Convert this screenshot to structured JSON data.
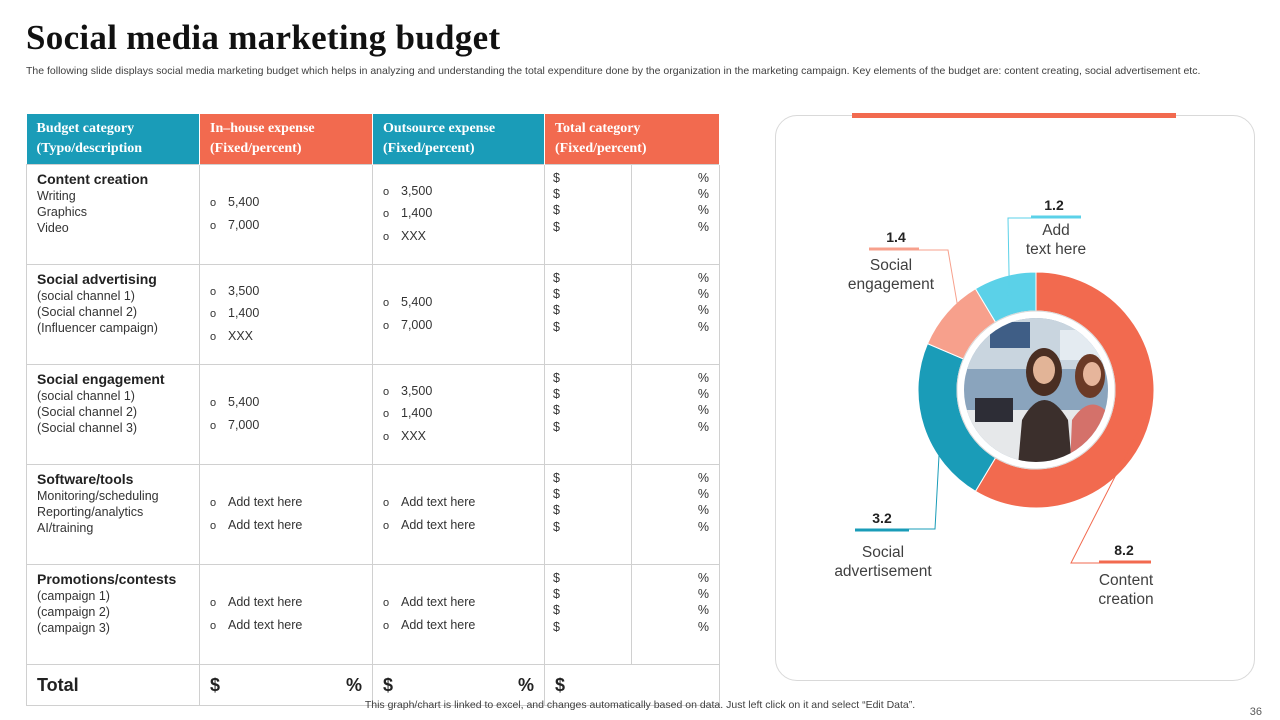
{
  "title": "Social media marketing budget",
  "subtitle": "The following slide displays social media marketing budget which helps in analyzing and understanding the total expenditure done by the organization  in the marketing campaign. Key elements of the budget are: content creating, social advertisement etc.",
  "table": {
    "headers": [
      {
        "line1": "Budget category",
        "line2": "(Typo/description"
      },
      {
        "line1": "In–house expense",
        "line2": "(Fixed/percent)"
      },
      {
        "line1": "Outsource expense",
        "line2": "(Fixed/percent)"
      },
      {
        "line1": "Total category",
        "line2": "(Fixed/percent)"
      }
    ],
    "rows": [
      {
        "name": "Content creation",
        "sub": [
          "Writing",
          "Graphics",
          "Video"
        ],
        "inhouse": [
          "5,400",
          "7,000"
        ],
        "outsource": [
          "3,500",
          "1,400",
          "XXX"
        ]
      },
      {
        "name": "Social advertising",
        "sub": [
          "(social channel 1)",
          "(Social channel 2)",
          "(Influencer  campaign)"
        ],
        "inhouse": [
          "3,500",
          "1,400",
          "XXX"
        ],
        "outsource": [
          "5,400",
          "7,000"
        ]
      },
      {
        "name": "Social engagement",
        "sub": [
          "(social channel 1)",
          "(Social channel 2)",
          "(Social channel 3)"
        ],
        "inhouse": [
          "5,400",
          "7,000"
        ],
        "outsource": [
          "3,500",
          "1,400",
          "XXX"
        ]
      },
      {
        "name": "Software/tools",
        "sub": [
          "Monitoring/scheduling",
          "Reporting/analytics",
          "AI/training"
        ],
        "inhouse": [
          "Add text here",
          "Add text here"
        ],
        "outsource": [
          "Add text here",
          "Add text here"
        ]
      },
      {
        "name": "Promotions/contests",
        "sub": [
          "(campaign  1)",
          "(campaign  2)",
          "(campaign  3)"
        ],
        "inhouse": [
          "Add text here",
          "Add text here"
        ],
        "outsource": [
          "Add text here",
          "Add text here"
        ]
      }
    ],
    "dollar": "$",
    "percent": "%",
    "total_label": "Total"
  },
  "chart_data": {
    "type": "pie",
    "variant": "donut",
    "categories": [
      "Content creation",
      "Social advertisement",
      "Social engagement",
      "Add text here"
    ],
    "values": [
      8.2,
      3.2,
      1.4,
      1.2
    ],
    "value_labels": [
      "8.2",
      "3.2",
      "1.4",
      "1.2"
    ],
    "label_lines": [
      [
        "Content",
        "creation"
      ],
      [
        "Social",
        "advertisement"
      ],
      [
        "Social",
        "engagement"
      ],
      [
        "Add",
        "text here"
      ]
    ],
    "colors": [
      "#f26a4f",
      "#1a9cb8",
      "#f7a08c",
      "#5bd1e8"
    ],
    "center_image": "photo of two smiling women at a computer desk"
  },
  "footer": "This graph/chart is linked to excel,  and changes automatically based on data. Just left click on it and select “Edit Data”.",
  "page_number": "36"
}
